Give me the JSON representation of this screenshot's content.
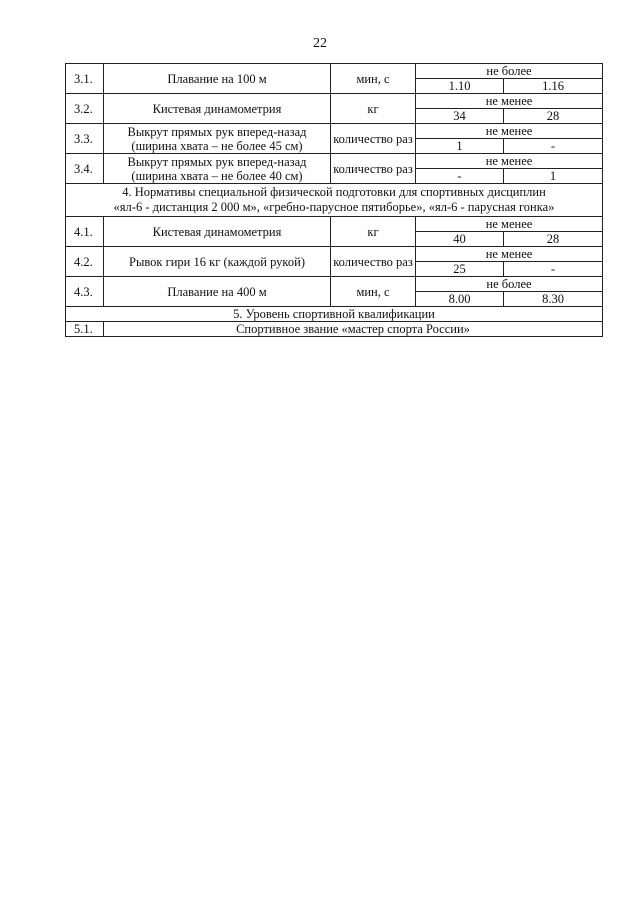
{
  "page_number": "22",
  "rows_3": [
    {
      "num": "3.1.",
      "name": "Плавание на 100 м",
      "unit": "мин, с",
      "cond": "не более",
      "v1": "1.10",
      "v2": "1.16"
    },
    {
      "num": "3.2.",
      "name": "Кистевая динамометрия",
      "unit": "кг",
      "cond": "не менее",
      "v1": "34",
      "v2": "28"
    },
    {
      "num": "3.3.",
      "name": "Выкрут прямых рук вперед-назад",
      "name2": "(ширина хвата – не более 45 см)",
      "unit": "количество раз",
      "cond": "не менее",
      "v1": "1",
      "v2": "-"
    },
    {
      "num": "3.4.",
      "name": "Выкрут прямых рук вперед-назад",
      "name2": "(ширина хвата – не более 40 см)",
      "unit": "количество раз",
      "cond": "не менее",
      "v1": "-",
      "v2": "1"
    }
  ],
  "section4": {
    "line1": "4. Нормативы специальной физической подготовки для спортивных дисциплин",
    "line2": "«ял-6 - дистанция 2 000 м», «гребно-парусное пятиборье», «ял-6 - парусная гонка»"
  },
  "rows_4": [
    {
      "num": "4.1.",
      "name": "Кистевая динамометрия",
      "unit": "кг",
      "cond": "не менее",
      "v1": "40",
      "v2": "28"
    },
    {
      "num": "4.2.",
      "name": "Рывок гири 16 кг (каждой рукой)",
      "unit": "количество раз",
      "cond": "не менее",
      "v1": "25",
      "v2": "-"
    },
    {
      "num": "4.3.",
      "name": "Плавание на 400 м",
      "unit": "мин, с",
      "cond": "не более",
      "v1": "8.00",
      "v2": "8.30"
    }
  ],
  "section5": {
    "title": "5. Уровень спортивной квалификации"
  },
  "row_5": {
    "num": "5.1.",
    "text": "Спортивное звание «мастер спорта России»"
  }
}
